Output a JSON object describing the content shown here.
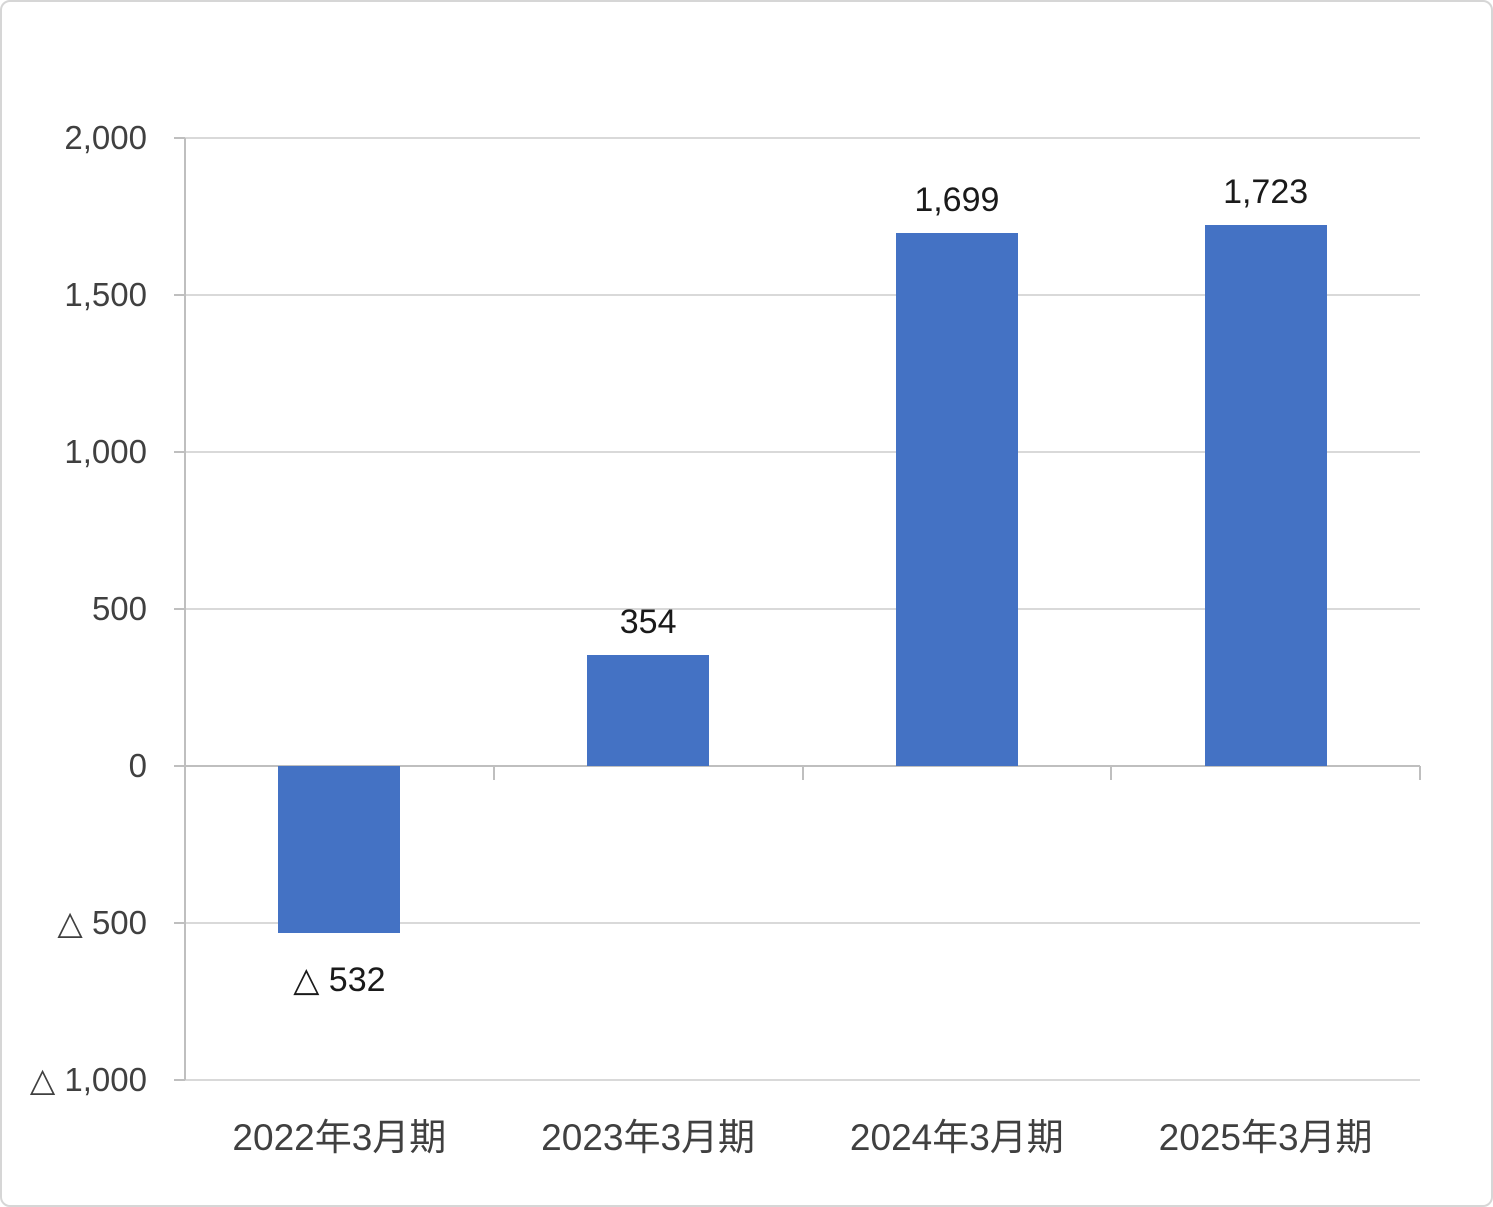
{
  "chart_data": {
    "type": "bar",
    "title": "",
    "xlabel": "",
    "ylabel": "",
    "categories": [
      "2022年3月期",
      "2023年3月期",
      "2024年3月期",
      "2025年3月期"
    ],
    "values": [
      -532,
      354,
      1699,
      1723
    ],
    "value_labels": [
      "△ 532",
      "354",
      "1,699",
      "1,723"
    ],
    "ylim": [
      -1000,
      2000
    ],
    "yticks": [
      {
        "value": 2000,
        "label": "2,000"
      },
      {
        "value": 1500,
        "label": "1,500"
      },
      {
        "value": 1000,
        "label": "1,000"
      },
      {
        "value": 500,
        "label": "500"
      },
      {
        "value": 0,
        "label": "0"
      },
      {
        "value": -500,
        "label": "△ 500"
      },
      {
        "value": -1000,
        "label": "△ 1,000"
      }
    ],
    "grid": "horizontal",
    "legend": "none",
    "bar_color": "#4472C4",
    "negative_notation": "triangle"
  },
  "colors": {
    "bar": "#4472C4",
    "gridline": "#D9D9D9",
    "zero_line": "#BFBFBF",
    "axis_line": "#BFBFBF",
    "axis_text": "#404040",
    "data_label": "#1a1a1a",
    "frame_border": "#D6D6D6",
    "background": "#FFFFFF"
  }
}
